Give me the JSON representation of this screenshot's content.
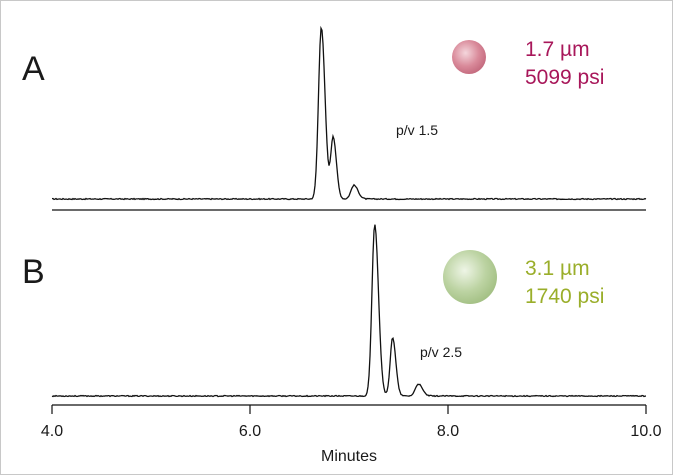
{
  "chart_data": [
    {
      "type": "line",
      "panel_label": "A",
      "particle": {
        "size": "1.7 µm",
        "pressure": "5099 psi",
        "color": "#a8175a",
        "bead_color": "#d98a9a"
      },
      "annotation": "p/v 1.5",
      "xlim": [
        4.0,
        10.0
      ],
      "peaks": [
        {
          "x": 6.72,
          "height": 1.0
        },
        {
          "x": 6.84,
          "height": 0.36
        },
        {
          "x": 7.05,
          "height": 0.08
        }
      ]
    },
    {
      "type": "line",
      "panel_label": "B",
      "particle": {
        "size": "3.1 µm",
        "pressure": "1740 psi",
        "color": "#9aae2a",
        "bead_color": "#bcd3a2"
      },
      "annotation": "p/v 2.5",
      "xlim": [
        4.0,
        10.0
      ],
      "peaks": [
        {
          "x": 7.26,
          "height": 1.0
        },
        {
          "x": 7.44,
          "height": 0.34
        },
        {
          "x": 7.7,
          "height": 0.07
        }
      ]
    }
  ],
  "axis": {
    "xlabel": "Minutes",
    "ticks": [
      4.0,
      6.0,
      8.0,
      10.0
    ],
    "tick_labels": [
      "4.0",
      "6.0",
      "8.0",
      "10.0"
    ]
  }
}
